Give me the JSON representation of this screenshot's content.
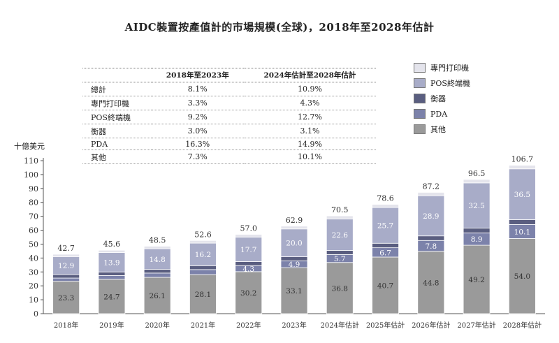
{
  "title": "AIDC裝置按產值計的市場規模(全球)，2018年至2028年估計",
  "unit_label": "十億美元",
  "colors": {
    "專門打印機": "#e4e4ec",
    "POS終端機": "#a8acc8",
    "衡器": "#5a5e80",
    "PDA": "#7c82aa",
    "其他": "#9a9a9a"
  },
  "cagr_table": {
    "headers": [
      "",
      "2018年至2023年",
      "2024年估計至2028年估計"
    ],
    "rows": [
      [
        "總計",
        "8.1%",
        "10.9%"
      ],
      [
        "專門打印機",
        "3.3%",
        "4.3%"
      ],
      [
        "POS終端機",
        "9.2%",
        "12.7%"
      ],
      [
        "衡器",
        "3.0%",
        "3.1%"
      ],
      [
        "PDA",
        "16.3%",
        "14.9%"
      ],
      [
        "其他",
        "7.3%",
        "10.1%"
      ]
    ]
  },
  "legend": [
    "專門打印機",
    "POS終端機",
    "衡器",
    "PDA",
    "其他"
  ],
  "chart_data": {
    "type": "bar",
    "stacked": true,
    "title": "AIDC裝置按產值計的市場規模(全球)，2018年至2028年估計",
    "ylabel": "十億美元",
    "ylim": [
      0,
      110
    ],
    "yticks": [
      0,
      10,
      20,
      30,
      40,
      50,
      60,
      70,
      80,
      90,
      100,
      110
    ],
    "categories": [
      "2018年",
      "2019年",
      "2020年",
      "2021年",
      "2022年",
      "2023年",
      "2024年估計",
      "2025年估計",
      "2026年估計",
      "2027年估計",
      "2028年估計"
    ],
    "totals": [
      "42.7",
      "45.6",
      "48.5",
      "52.6",
      "57.0",
      "62.9",
      "70.5",
      "78.6",
      "87.2",
      "96.5",
      "106.7"
    ],
    "series": [
      {
        "name": "其他",
        "values": [
          23.3,
          24.7,
          26.1,
          28.1,
          30.2,
          33.1,
          36.8,
          40.7,
          44.8,
          49.2,
          54.0
        ]
      },
      {
        "name": "PDA",
        "values": [
          2.3,
          2.7,
          3.1,
          3.6,
          4.3,
          4.9,
          5.7,
          6.7,
          7.8,
          8.9,
          10.1
        ]
      },
      {
        "name": "衡器",
        "values": [
          2.5,
          2.6,
          2.7,
          2.8,
          2.9,
          2.9,
          3.0,
          3.2,
          3.3,
          3.4,
          3.5
        ]
      },
      {
        "name": "POS終端機",
        "values": [
          12.9,
          13.9,
          14.8,
          16.2,
          17.7,
          20.0,
          22.6,
          25.7,
          28.9,
          32.5,
          36.5
        ]
      },
      {
        "name": "專門打印機",
        "values": [
          1.7,
          1.7,
          1.8,
          1.9,
          1.9,
          2.0,
          2.2,
          2.3,
          2.4,
          2.5,
          2.6
        ]
      }
    ],
    "legend_position": "right"
  }
}
